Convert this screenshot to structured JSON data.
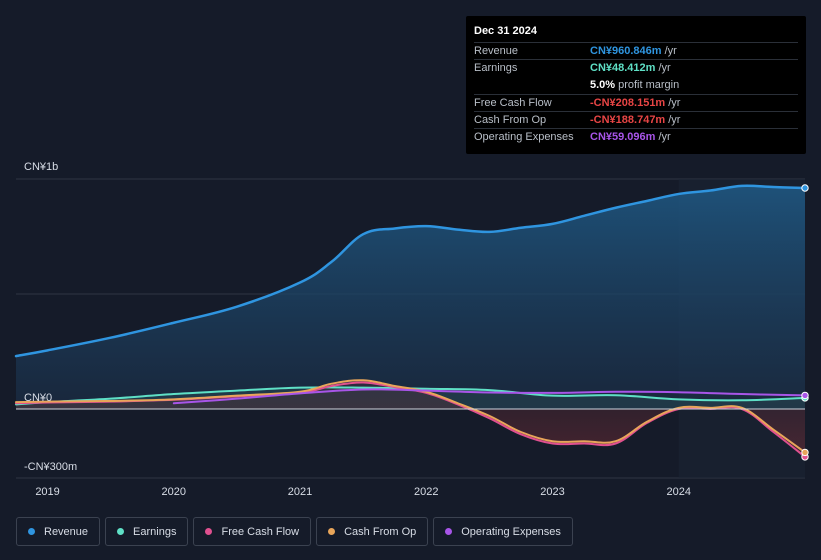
{
  "chart_data": {
    "type": "area",
    "title": "",
    "y_axis": {
      "unit_label_top": "CN¥1b",
      "unit_label_zero": "CN¥0",
      "unit_label_bottom": "-CN¥300m",
      "ylim": [
        -300,
        1000
      ]
    },
    "x_axis": {
      "ticks": [
        "2019",
        "2020",
        "2021",
        "2022",
        "2023",
        "2024"
      ],
      "tick_values": [
        2019,
        2020,
        2021,
        2022,
        2023,
        2024
      ],
      "xlim": [
        2018.75,
        2025.0
      ]
    },
    "forecast_start": 2024.0,
    "series": [
      {
        "name": "Revenue",
        "color": "#2f95e0",
        "x": [
          2018.75,
          2019.0,
          2019.5,
          2020.0,
          2020.5,
          2021.0,
          2021.25,
          2021.5,
          2021.75,
          2022.0,
          2022.25,
          2022.5,
          2022.75,
          2023.0,
          2023.25,
          2023.5,
          2023.75,
          2024.0,
          2024.25,
          2024.5,
          2024.75,
          2025.0
        ],
        "values": [
          230,
          255,
          310,
          375,
          445,
          550,
          640,
          760,
          785,
          795,
          780,
          770,
          788,
          805,
          840,
          875,
          905,
          935,
          950,
          970,
          965,
          960.846
        ]
      },
      {
        "name": "Earnings",
        "color": "#5fe0c6",
        "x": [
          2018.75,
          2019.0,
          2019.5,
          2020.0,
          2020.5,
          2021.0,
          2021.5,
          2022.0,
          2022.5,
          2023.0,
          2023.5,
          2024.0,
          2024.5,
          2025.0
        ],
        "values": [
          20,
          30,
          45,
          65,
          80,
          93,
          93,
          88,
          82,
          58,
          60,
          42,
          38,
          48.412
        ]
      },
      {
        "name": "Free Cash Flow",
        "color": "#e0508f",
        "x": [
          2018.75,
          2019.0,
          2019.5,
          2020.0,
          2020.5,
          2021.0,
          2021.25,
          2021.5,
          2021.75,
          2022.0,
          2022.25,
          2022.5,
          2022.75,
          2023.0,
          2023.25,
          2023.5,
          2023.75,
          2024.0,
          2024.25,
          2024.5,
          2024.75,
          2025.0
        ],
        "values": [
          25,
          28,
          32,
          40,
          55,
          70,
          100,
          115,
          95,
          70,
          20,
          -40,
          -110,
          -150,
          -150,
          -150,
          -60,
          0,
          0,
          0,
          -100,
          -208.151
        ]
      },
      {
        "name": "Cash From Op",
        "color": "#e8a55a",
        "x": [
          2018.75,
          2019.0,
          2019.5,
          2020.0,
          2020.5,
          2021.0,
          2021.25,
          2021.5,
          2021.75,
          2022.0,
          2022.25,
          2022.5,
          2022.75,
          2023.0,
          2023.25,
          2023.5,
          2023.75,
          2024.0,
          2024.25,
          2024.5,
          2024.75,
          2025.0
        ],
        "values": [
          30,
          32,
          35,
          42,
          58,
          75,
          110,
          125,
          100,
          75,
          25,
          -30,
          -100,
          -140,
          -140,
          -140,
          -55,
          5,
          5,
          5,
          -90,
          -188.747
        ]
      },
      {
        "name": "Operating Expenses",
        "color": "#a855e8",
        "x": [
          2020.0,
          2020.5,
          2021.0,
          2021.5,
          2022.0,
          2022.5,
          2023.0,
          2023.5,
          2024.0,
          2024.5,
          2025.0
        ],
        "values": [
          25,
          45,
          68,
          85,
          80,
          72,
          70,
          75,
          73,
          65,
          59.096
        ]
      }
    ]
  },
  "tooltip": {
    "date": "Dec 31 2024",
    "rows": [
      {
        "label": "Revenue",
        "value": "CN¥960.846m",
        "unit": "/yr",
        "color": "#2f95e0"
      },
      {
        "label": "Earnings",
        "value": "CN¥48.412m",
        "unit": "/yr",
        "color": "#5fe0c6"
      },
      {
        "label": "",
        "value": "5.0%",
        "unit": "profit margin",
        "color": "#ffffff"
      },
      {
        "label": "Free Cash Flow",
        "value": "-CN¥208.151m",
        "unit": "/yr",
        "color": "#e84545"
      },
      {
        "label": "Cash From Op",
        "value": "-CN¥188.747m",
        "unit": "/yr",
        "color": "#e84545"
      },
      {
        "label": "Operating Expenses",
        "value": "CN¥59.096m",
        "unit": "/yr",
        "color": "#a855e8"
      }
    ]
  },
  "legend": [
    {
      "label": "Revenue",
      "color": "#2f95e0"
    },
    {
      "label": "Earnings",
      "color": "#5fe0c6"
    },
    {
      "label": "Free Cash Flow",
      "color": "#e0508f"
    },
    {
      "label": "Cash From Op",
      "color": "#e8a55a"
    },
    {
      "label": "Operating Expenses",
      "color": "#a855e8"
    }
  ]
}
